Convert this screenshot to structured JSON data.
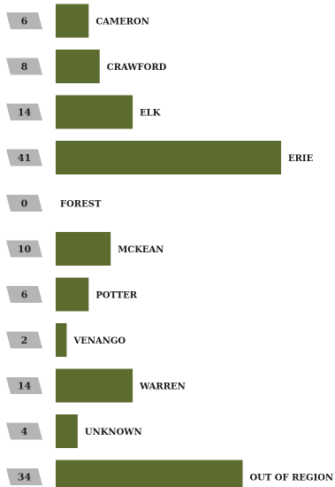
{
  "chart_data": {
    "type": "bar",
    "orientation": "horizontal",
    "categories": [
      "CAMERON",
      "CRAWFORD",
      "ELK",
      "ERIE",
      "FOREST",
      "MCKEAN",
      "POTTER",
      "VENANGO",
      "WARREN",
      "UNKNOWN",
      "OUT OF REGION"
    ],
    "values": [
      6,
      8,
      14,
      41,
      0,
      10,
      6,
      2,
      14,
      4,
      34
    ],
    "title": "",
    "xlabel": "",
    "ylabel": "",
    "xlim": [
      0,
      41
    ],
    "grid": false,
    "legend": "none",
    "colors": {
      "bar": "#5c6b2e",
      "badge": "#b5b5b5",
      "value_text": "#222222",
      "label_text": "#1a1a1a"
    }
  }
}
